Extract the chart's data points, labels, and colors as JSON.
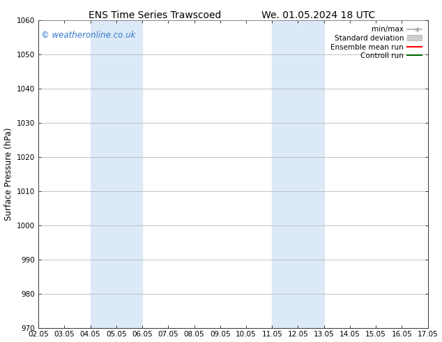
{
  "title_left": "ENS Time Series Trawscoed",
  "title_right": "We. 01.05.2024 18 UTC",
  "ylabel": "Surface Pressure (hPa)",
  "xlabel": "",
  "x_min": 2.05,
  "x_max": 17.05,
  "y_min": 970,
  "y_max": 1060,
  "y_ticks": [
    970,
    980,
    990,
    1000,
    1010,
    1020,
    1030,
    1040,
    1050,
    1060
  ],
  "x_ticks": [
    2.05,
    3.05,
    4.05,
    5.05,
    6.05,
    7.05,
    8.05,
    9.05,
    10.05,
    11.05,
    12.05,
    13.05,
    14.05,
    15.05,
    16.05,
    17.05
  ],
  "x_tick_labels": [
    "02.05",
    "03.05",
    "04.05",
    "05.05",
    "06.05",
    "07.05",
    "08.05",
    "09.05",
    "10.05",
    "11.05",
    "12.05",
    "13.05",
    "14.05",
    "15.05",
    "16.05",
    "17.05"
  ],
  "shaded_bands": [
    {
      "x_start": 4.05,
      "x_end": 6.05
    },
    {
      "x_start": 11.05,
      "x_end": 13.05
    }
  ],
  "shade_color": "#DCE9F7",
  "watermark_text": "© weatheronline.co.uk",
  "watermark_color": "#3377CC",
  "bg_color": "#FFFFFF",
  "grid_color": "#AAAAAA",
  "tick_color": "#333333",
  "font_size_title": 10,
  "font_size_axis": 8.5,
  "font_size_tick": 7.5,
  "font_size_legend": 7.5,
  "font_size_watermark": 8.5,
  "legend_labels": [
    "min/max",
    "Standard deviation",
    "Ensemble mean run",
    "Controll run"
  ],
  "legend_colors": [
    "#AAAAAA",
    "#CCCCCC",
    "red",
    "green"
  ]
}
